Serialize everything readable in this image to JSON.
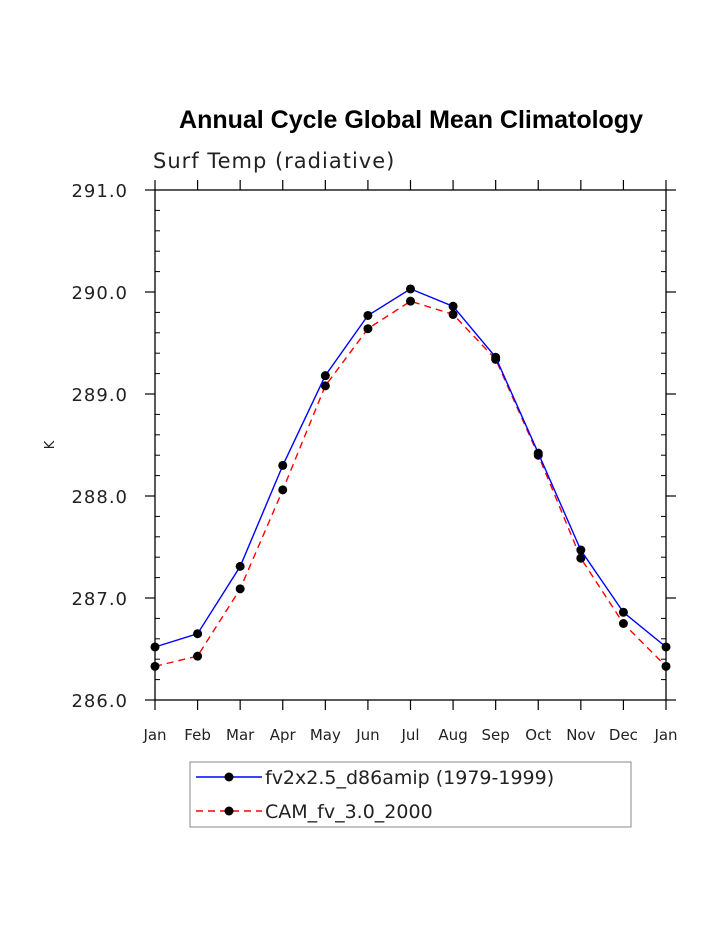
{
  "chart_data": {
    "type": "line",
    "title": "Annual Cycle Global Mean Climatology",
    "subtitle": "Surf Temp (radiative)",
    "ylabel": "K",
    "xlabel": "",
    "ylim": [
      286.0,
      291.0
    ],
    "yticks": [
      "286.0",
      "287.0",
      "288.0",
      "289.0",
      "290.0",
      "291.0"
    ],
    "categories": [
      "Jan",
      "Feb",
      "Mar",
      "Apr",
      "May",
      "Jun",
      "Jul",
      "Aug",
      "Sep",
      "Oct",
      "Nov",
      "Dec",
      "Jan"
    ],
    "grid": false,
    "legend_position": "bottom",
    "series": [
      {
        "name": "fv2x2.5_d86amip (1979-1999)",
        "color": "#0000ff",
        "line_style": "solid",
        "marker": "filled-circle",
        "values": [
          286.52,
          286.65,
          287.31,
          288.3,
          289.18,
          289.77,
          290.03,
          289.86,
          289.36,
          288.42,
          287.47,
          286.86,
          286.52
        ]
      },
      {
        "name": "CAM_fv_3.0_2000",
        "color": "#ff0000",
        "line_style": "dashed",
        "marker": "filled-circle",
        "values": [
          286.33,
          286.43,
          287.09,
          288.06,
          289.08,
          289.64,
          289.91,
          289.78,
          289.34,
          288.4,
          287.39,
          286.75,
          286.33
        ]
      }
    ]
  }
}
